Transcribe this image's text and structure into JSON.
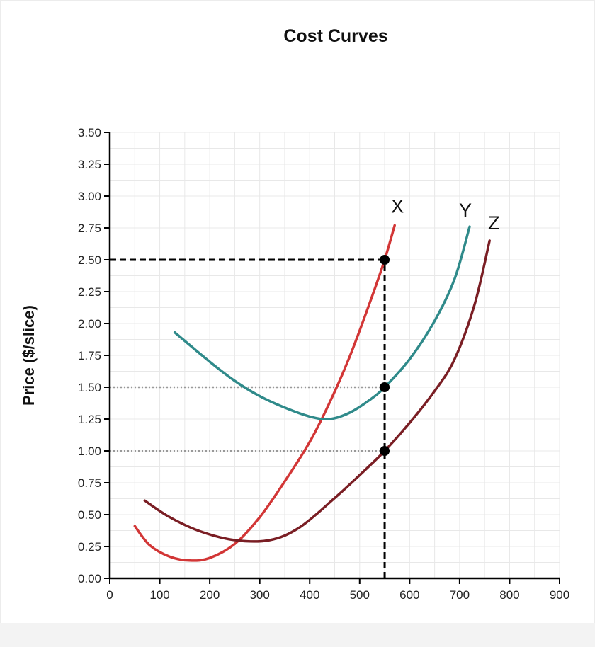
{
  "chart_data": {
    "type": "line",
    "title": "Cost Curves",
    "xlabel": "",
    "ylabel": "Price ($/slice)",
    "xlim": [
      0,
      900
    ],
    "ylim": [
      0,
      3.5
    ],
    "x_ticks": [
      "0",
      "100",
      "200",
      "300",
      "400",
      "500",
      "600",
      "700",
      "800",
      "900"
    ],
    "y_ticks": [
      "0.00",
      "0.25",
      "0.50",
      "0.75",
      "1.00",
      "1.25",
      "1.50",
      "1.75",
      "2.00",
      "2.25",
      "2.50",
      "2.75",
      "3.00",
      "3.25",
      "3.50"
    ],
    "grid": true,
    "series": [
      {
        "name": "X",
        "color": "#d23636",
        "x": [
          50,
          80,
          120,
          160,
          200,
          250,
          300,
          350,
          400,
          440,
          480,
          520,
          550,
          570
        ],
        "y": [
          0.41,
          0.26,
          0.17,
          0.14,
          0.16,
          0.27,
          0.48,
          0.76,
          1.07,
          1.38,
          1.74,
          2.16,
          2.5,
          2.77
        ]
      },
      {
        "name": "Y",
        "color": "#2f8a8a",
        "x": [
          130,
          200,
          250,
          300,
          350,
          400,
          440,
          480,
          520,
          550,
          600,
          650,
          690,
          720
        ],
        "y": [
          1.93,
          1.7,
          1.55,
          1.43,
          1.34,
          1.27,
          1.25,
          1.3,
          1.4,
          1.5,
          1.72,
          2.02,
          2.35,
          2.76
        ]
      },
      {
        "name": "Z",
        "color": "#7a1e24",
        "x": [
          70,
          120,
          180,
          250,
          320,
          380,
          450,
          500,
          550,
          600,
          650,
          690,
          730,
          760
        ],
        "y": [
          0.61,
          0.48,
          0.37,
          0.3,
          0.3,
          0.4,
          0.63,
          0.81,
          1.0,
          1.22,
          1.47,
          1.72,
          2.15,
          2.65
        ]
      }
    ],
    "markers": [
      {
        "x": 550,
        "y": 2.5
      },
      {
        "x": 550,
        "y": 1.5
      },
      {
        "x": 550,
        "y": 1.0
      }
    ],
    "reference_lines": [
      {
        "style": "dashed-black",
        "from": [
          0,
          2.5
        ],
        "to": [
          550,
          2.5
        ]
      },
      {
        "style": "dashed-black",
        "from": [
          550,
          0
        ],
        "to": [
          550,
          2.5
        ]
      },
      {
        "style": "dotted-gray",
        "from": [
          0,
          1.5
        ],
        "to": [
          550,
          1.5
        ]
      },
      {
        "style": "dotted-gray",
        "from": [
          0,
          1.0
        ],
        "to": [
          550,
          1.0
        ]
      }
    ],
    "colors": {
      "axis": "#000000",
      "grid": "#e8e8e8",
      "marker": "#000000",
      "dashed": "#000000",
      "dotted": "#999999"
    }
  }
}
